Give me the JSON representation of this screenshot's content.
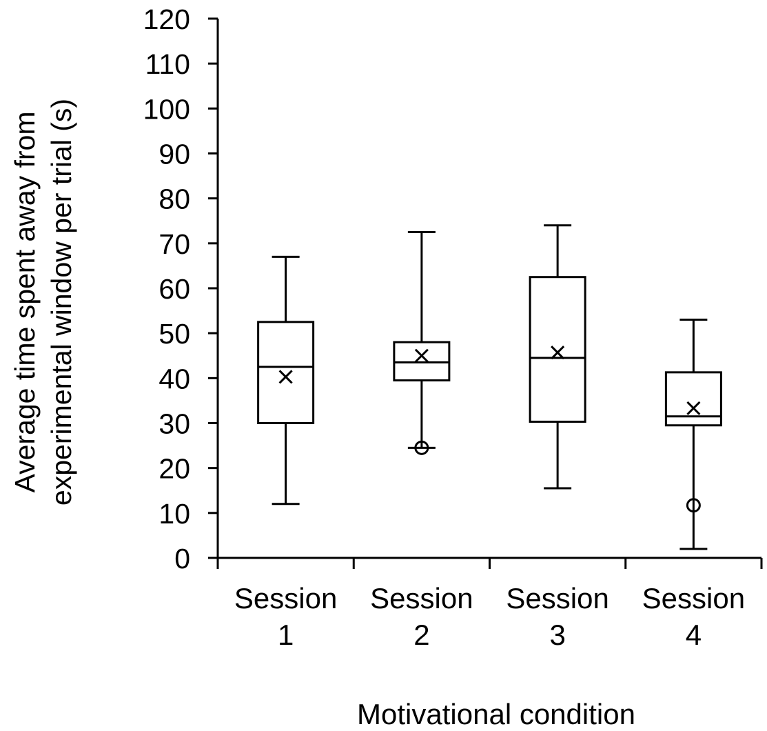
{
  "chart_data": {
    "type": "box",
    "xlabel": "Motivational condition",
    "ylabel_lines": [
      "Average time spent away from",
      "experimental window per trial (s)"
    ],
    "ylim": [
      0,
      120
    ],
    "yticks": [
      0,
      10,
      20,
      30,
      40,
      50,
      60,
      70,
      80,
      90,
      100,
      110,
      120
    ],
    "grid": false,
    "legend": "none",
    "categories": [
      {
        "line1": "Session",
        "line2": "1"
      },
      {
        "line1": "Session",
        "line2": "2"
      },
      {
        "line1": "Session",
        "line2": "3"
      },
      {
        "line1": "Session",
        "line2": "4"
      }
    ],
    "boxes": [
      {
        "whisker_low": 12,
        "q1": 30,
        "median": 42.5,
        "q3": 52.5,
        "whisker_high": 67,
        "mean": 40.3,
        "outliers": []
      },
      {
        "whisker_low": 24.5,
        "q1": 39.5,
        "median": 43.5,
        "q3": 48,
        "whisker_high": 72.5,
        "mean": 45,
        "outliers": [
          24.5
        ]
      },
      {
        "whisker_low": 15.5,
        "q1": 30.3,
        "median": 44.5,
        "q3": 62.5,
        "whisker_high": 74,
        "mean": 45.7,
        "outliers": []
      },
      {
        "whisker_low": 2,
        "q1": 29.5,
        "median": 31.5,
        "q3": 41.3,
        "whisker_high": 53,
        "mean": 33.3,
        "outliers": [
          11.7
        ]
      }
    ]
  }
}
